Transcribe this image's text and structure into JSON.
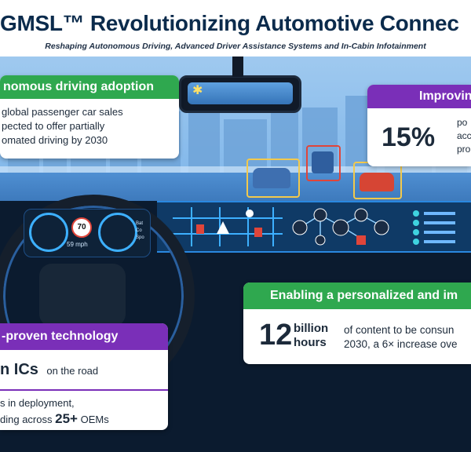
{
  "header": {
    "title": "GMSL™ Revolutionizing Automotive Connec",
    "subtitle": "Reshaping Autonomous Driving, Advanced Driver Assistance Systems and In-Cabin Infotainment"
  },
  "cards": {
    "autonomous": {
      "heading": "nomous driving adoption",
      "line1": "global passenger car sales",
      "line2": "pected to offer partially",
      "line3": "omated driving by 2030"
    },
    "improving": {
      "heading": "Improvin",
      "stat": "15%",
      "line1": "po",
      "line2": "acc",
      "line3": "pro"
    },
    "personalized": {
      "heading": "Enabling a personalized and im",
      "stat_num": "12",
      "stat_unit1": "billion",
      "stat_unit2": "hours",
      "line1": "of content to be consun",
      "line2": "2030, a 6× increase ove"
    },
    "proven": {
      "heading": "-proven technology",
      "ics_big": "n ICs",
      "ics_small": "on the road",
      "line1": "s in deployment,",
      "line2_pre": "ding across",
      "line2_big": "25+",
      "line2_post": "OEMs"
    }
  },
  "cluster": {
    "speed_limit": "70",
    "speed": "59 mph",
    "side1": "Bat",
    "side2": "Co",
    "side3": "Spo"
  },
  "colors": {
    "green": "#2fa84f",
    "purple": "#7a2fb8",
    "navy": "#0b2b4c",
    "accent_blue": "#2a88e0"
  },
  "icons": [
    "wifi-icon",
    "location-icon",
    "car-icon",
    "gear-icon",
    "cloud-icon",
    "bar-chart-icon",
    "warning-icon",
    "sun-icon"
  ]
}
